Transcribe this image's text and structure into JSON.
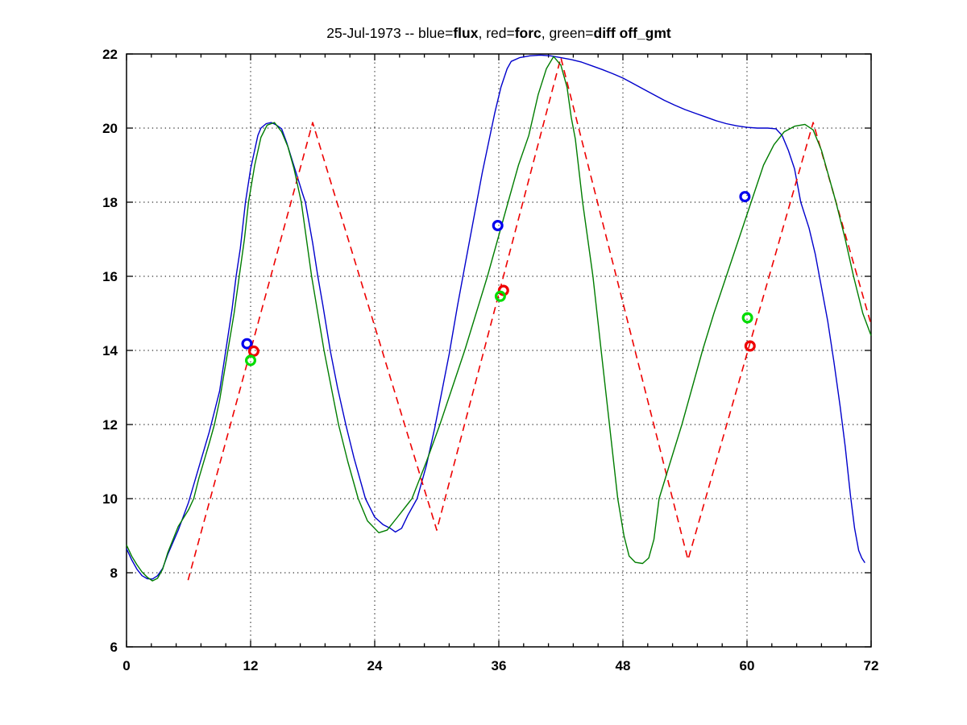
{
  "figure": {
    "background": "#ffffff",
    "box_color": "#000000",
    "grid_color": "#000000"
  },
  "chart_data": {
    "type": "line",
    "title": "25-Jul-1973 -- blue=flux, red=forc, green=diff off_gmt",
    "title_segments": [
      {
        "text": "25-Jul-1973 -- blue=",
        "bold": false
      },
      {
        "text": "flux",
        "bold": true
      },
      {
        "text": ", red=",
        "bold": false
      },
      {
        "text": "forc",
        "bold": true
      },
      {
        "text": ", green=",
        "bold": false
      },
      {
        "text": "diff off_gmt",
        "bold": true
      }
    ],
    "xlabel": "",
    "ylabel": "",
    "xlim": [
      0,
      72
    ],
    "ylim": [
      6,
      22
    ],
    "xticks": [
      0,
      12,
      24,
      36,
      48,
      60,
      72
    ],
    "yticks": [
      6,
      8,
      10,
      12,
      14,
      16,
      18,
      20,
      22
    ],
    "x_minor_step": 2.4,
    "grid": "dotted-at-major-ticks",
    "legend_position": "none (legend encoded in title)",
    "series": [
      {
        "name": "flux",
        "color": "#0000CC",
        "style": "solid",
        "width": 1.4,
        "points": [
          [
            0,
            8.65
          ],
          [
            0.5,
            8.35
          ],
          [
            1,
            8.1
          ],
          [
            1.5,
            7.92
          ],
          [
            2,
            7.84
          ],
          [
            2.5,
            7.83
          ],
          [
            3,
            7.92
          ],
          [
            3.5,
            8.12
          ],
          [
            4,
            8.5
          ],
          [
            5,
            9.15
          ],
          [
            6,
            9.9
          ],
          [
            7,
            10.85
          ],
          [
            8,
            11.8
          ],
          [
            9,
            12.9
          ],
          [
            9.6,
            14
          ],
          [
            10.2,
            15.1
          ],
          [
            10.6,
            16
          ],
          [
            11,
            16.75
          ],
          [
            11.5,
            18
          ],
          [
            12,
            18.9
          ],
          [
            12.7,
            19.8
          ],
          [
            13,
            20
          ],
          [
            13.5,
            20.12
          ],
          [
            14,
            20.15
          ],
          [
            14.5,
            20.08
          ],
          [
            15,
            19.98
          ],
          [
            15.5,
            19.6
          ],
          [
            16,
            19.15
          ],
          [
            16.5,
            18.7
          ],
          [
            17,
            18.25
          ],
          [
            17.3,
            18
          ],
          [
            18,
            16.9
          ],
          [
            18.5,
            16
          ],
          [
            19,
            15.2
          ],
          [
            19.7,
            14
          ],
          [
            20.4,
            13
          ],
          [
            21.2,
            12
          ],
          [
            22,
            11.1
          ],
          [
            23.1,
            10
          ],
          [
            24,
            9.5
          ],
          [
            24.8,
            9.3
          ],
          [
            25.5,
            9.2
          ],
          [
            26,
            9.1
          ],
          [
            26.6,
            9.2
          ],
          [
            27.2,
            9.55
          ],
          [
            28.1,
            10
          ],
          [
            29,
            10.9
          ],
          [
            29.8,
            11.9
          ],
          [
            30.5,
            12.9
          ],
          [
            31.2,
            13.9
          ],
          [
            32,
            15.2
          ],
          [
            32.8,
            16.4
          ],
          [
            33.6,
            17.6
          ],
          [
            34.4,
            18.8
          ],
          [
            35,
            19.6
          ],
          [
            35.6,
            20.4
          ],
          [
            36.2,
            21.1
          ],
          [
            36.8,
            21.6
          ],
          [
            37.2,
            21.8
          ],
          [
            38,
            21.9
          ],
          [
            39,
            21.95
          ],
          [
            40,
            21.97
          ],
          [
            41,
            21.95
          ],
          [
            42,
            21.9
          ],
          [
            43,
            21.85
          ],
          [
            44,
            21.78
          ],
          [
            45,
            21.68
          ],
          [
            46,
            21.58
          ],
          [
            47,
            21.47
          ],
          [
            48,
            21.35
          ],
          [
            49,
            21.2
          ],
          [
            50,
            21.05
          ],
          [
            51,
            20.9
          ],
          [
            52,
            20.75
          ],
          [
            53,
            20.62
          ],
          [
            54,
            20.5
          ],
          [
            55,
            20.4
          ],
          [
            56,
            20.3
          ],
          [
            57,
            20.2
          ],
          [
            58,
            20.12
          ],
          [
            59,
            20.06
          ],
          [
            60,
            20.02
          ],
          [
            61,
            20
          ],
          [
            62,
            20
          ],
          [
            62.8,
            19.98
          ],
          [
            63.4,
            19.8
          ],
          [
            64,
            19.4
          ],
          [
            64.6,
            18.9
          ],
          [
            65.2,
            18
          ],
          [
            66,
            17.3
          ],
          [
            66.6,
            16.6
          ],
          [
            67.2,
            15.7
          ],
          [
            67.8,
            14.8
          ],
          [
            68.4,
            13.7
          ],
          [
            69,
            12.5
          ],
          [
            69.5,
            11.4
          ],
          [
            70,
            10.1
          ],
          [
            70.4,
            9.2
          ],
          [
            70.8,
            8.6
          ],
          [
            71.1,
            8.4
          ],
          [
            71.4,
            8.27
          ]
        ]
      },
      {
        "name": "forc",
        "color": "#EE0000",
        "style": "dashed",
        "width": 1.6,
        "points": [
          [
            5.95,
            7.8
          ],
          [
            18,
            20.15
          ],
          [
            30,
            9.15
          ],
          [
            42,
            21.9
          ],
          [
            54.3,
            8.35
          ],
          [
            66.4,
            20.15
          ],
          [
            72,
            14.7
          ]
        ]
      },
      {
        "name": "diff",
        "color": "#007D00",
        "style": "solid",
        "width": 1.4,
        "points": [
          [
            0,
            8.75
          ],
          [
            0.5,
            8.45
          ],
          [
            1,
            8.22
          ],
          [
            1.5,
            8.02
          ],
          [
            2,
            7.88
          ],
          [
            2.5,
            7.78
          ],
          [
            3,
            7.85
          ],
          [
            3.5,
            8.1
          ],
          [
            4,
            8.55
          ],
          [
            5,
            9.25
          ],
          [
            6,
            9.7
          ],
          [
            6.5,
            10
          ],
          [
            7,
            10.55
          ],
          [
            8,
            11.5
          ],
          [
            8.5,
            12
          ],
          [
            9,
            12.65
          ],
          [
            9.8,
            14
          ],
          [
            10.4,
            15
          ],
          [
            10.9,
            16
          ],
          [
            11.4,
            17
          ],
          [
            11.8,
            18
          ],
          [
            12.4,
            19
          ],
          [
            13,
            19.75
          ],
          [
            13.6,
            20.08
          ],
          [
            14.3,
            20.15
          ],
          [
            15,
            19.9
          ],
          [
            15.6,
            19.5
          ],
          [
            16.2,
            18.9
          ],
          [
            16.9,
            18
          ],
          [
            17.4,
            17
          ],
          [
            17.9,
            16
          ],
          [
            18.5,
            15
          ],
          [
            19.1,
            14
          ],
          [
            19.8,
            13
          ],
          [
            20.5,
            12
          ],
          [
            21.4,
            11
          ],
          [
            22.4,
            10
          ],
          [
            23.3,
            9.4
          ],
          [
            24.4,
            9.08
          ],
          [
            25.2,
            9.15
          ],
          [
            26.2,
            9.5
          ],
          [
            27.6,
            10
          ],
          [
            29,
            11
          ],
          [
            30.3,
            12
          ],
          [
            31.5,
            13
          ],
          [
            32.7,
            14
          ],
          [
            33.8,
            15
          ],
          [
            34.9,
            16
          ],
          [
            35.9,
            17
          ],
          [
            36.9,
            18
          ],
          [
            37.9,
            19
          ],
          [
            38.9,
            19.8
          ],
          [
            39.8,
            20.9
          ],
          [
            40.6,
            21.6
          ],
          [
            41.3,
            21.93
          ],
          [
            42,
            21.7
          ],
          [
            42.6,
            21.1
          ],
          [
            43,
            20.3
          ],
          [
            43.4,
            19.7
          ],
          [
            44.1,
            18
          ],
          [
            45.1,
            16
          ],
          [
            45.9,
            14
          ],
          [
            46.7,
            12
          ],
          [
            47.5,
            10
          ],
          [
            48.1,
            9
          ],
          [
            48.6,
            8.45
          ],
          [
            49.2,
            8.28
          ],
          [
            49.9,
            8.25
          ],
          [
            50.5,
            8.4
          ],
          [
            51,
            8.9
          ],
          [
            51.5,
            10
          ],
          [
            52.6,
            11
          ],
          [
            53.7,
            12
          ],
          [
            54.7,
            13
          ],
          [
            55.7,
            14
          ],
          [
            56.8,
            15
          ],
          [
            58,
            16
          ],
          [
            59.2,
            17
          ],
          [
            60.4,
            18
          ],
          [
            61.6,
            19
          ],
          [
            62.6,
            19.55
          ],
          [
            63.6,
            19.9
          ],
          [
            64.6,
            20.05
          ],
          [
            65.6,
            20.1
          ],
          [
            66.4,
            19.95
          ],
          [
            67.2,
            19.4
          ],
          [
            68,
            18.6
          ],
          [
            68.6,
            18
          ],
          [
            69.5,
            17
          ],
          [
            70.3,
            16
          ],
          [
            71.2,
            15
          ],
          [
            72,
            14.4
          ]
        ]
      }
    ],
    "markers": [
      {
        "name": "flux-obs",
        "color": "#0000EE",
        "shape": "circle",
        "points": [
          [
            11.65,
            14.18
          ],
          [
            35.9,
            17.37
          ],
          [
            59.8,
            18.15
          ]
        ]
      },
      {
        "name": "forc-obs",
        "color": "#EE0000",
        "shape": "circle",
        "points": [
          [
            12.3,
            13.98
          ],
          [
            36.45,
            15.62
          ],
          [
            60.3,
            14.12
          ]
        ]
      },
      {
        "name": "diff-obs",
        "color": "#00DD00",
        "shape": "circle",
        "points": [
          [
            12.0,
            13.73
          ],
          [
            36.15,
            15.46
          ],
          [
            60.05,
            14.88
          ]
        ]
      }
    ]
  }
}
